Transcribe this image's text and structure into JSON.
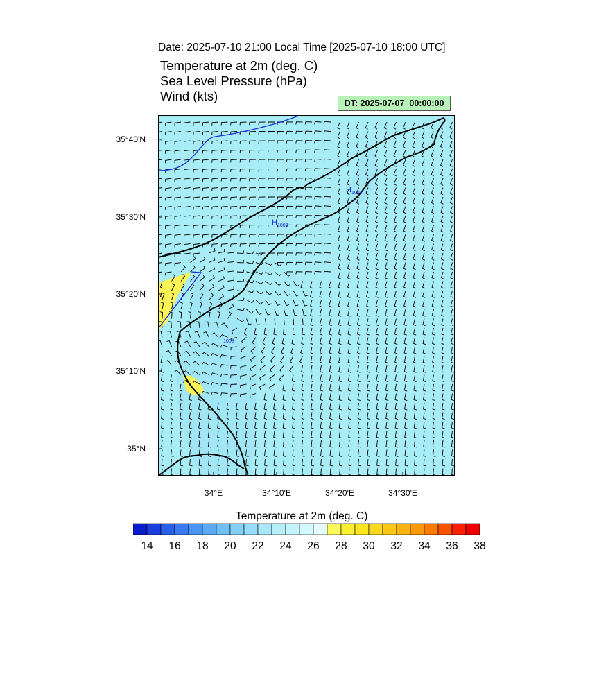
{
  "header": {
    "date_line": "Date: 2025-07-10  21:00 Local Time [2025-07-10  18:00 UTC]",
    "title_temp": "Temperature at 2m   (deg. C)",
    "title_slp": "Sea Level Pressure   (hPa)",
    "title_wind": "Wind   (kts)",
    "dt_label": "DT: 2025-07-07_00:00:00"
  },
  "map": {
    "lat_labels": [
      "35°40'N",
      "35°30'N",
      "35°20'N",
      "35°10'N",
      "35°N"
    ],
    "lon_labels": [
      "34°E",
      "34°10'E",
      "34°20'E",
      "34°30'E"
    ],
    "pressure_centers": [
      {
        "symbol": "H",
        "value": "1003"
      },
      {
        "symbol": "H",
        "value": "1003"
      },
      {
        "symbol": "L",
        "value": "1003"
      }
    ],
    "colors": {
      "background": "#a8ecf5",
      "warm": "#fbf454",
      "cool": "#94dcf2",
      "isobar": "#1c2bd8",
      "coast": "#000000"
    }
  },
  "colorbar": {
    "title": "Temperature at 2m  (deg. C)",
    "labels": [
      "14",
      "16",
      "18",
      "20",
      "22",
      "24",
      "26",
      "28",
      "30",
      "32",
      "34",
      "36",
      "38"
    ],
    "colors": [
      "#0a1bd0",
      "#1a3ee0",
      "#2a5fea",
      "#3a7cf0",
      "#4a94f2",
      "#5caaf4",
      "#70bef6",
      "#84cef7",
      "#96dcf8",
      "#a8e6f9",
      "#b6eefa",
      "#c4f4fb",
      "#d4f9fc",
      "#e4fcfd",
      "#fbf85a",
      "#fbf030",
      "#fbe520",
      "#fbd820",
      "#fbc818",
      "#fbb410",
      "#fb9a08",
      "#fb7a00",
      "#fb5200",
      "#fb2000",
      "#ee0000"
    ]
  }
}
